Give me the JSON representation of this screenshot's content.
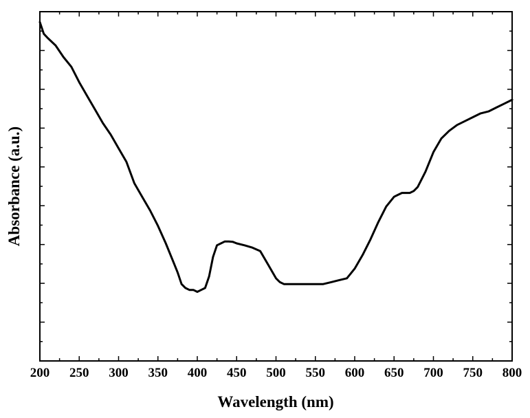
{
  "chart_data": {
    "type": "line",
    "title": "",
    "xlabel": "Wavelength (nm)",
    "ylabel": "Absorbance (a.u.)",
    "xlim": [
      200,
      800
    ],
    "ylim": [
      0,
      9
    ],
    "x_ticks": [
      "200",
      "250",
      "300",
      "350",
      "400",
      "450",
      "500",
      "550",
      "600",
      "650",
      "700",
      "750",
      "800"
    ],
    "y_ticks_labeled": false,
    "grid": false,
    "legend": "none",
    "line_color": "#000000",
    "series": [
      {
        "x": [
          200,
          205,
          210,
          220,
          230,
          240,
          250,
          260,
          270,
          280,
          290,
          300,
          310,
          320,
          330,
          340,
          350,
          360,
          370,
          375,
          380,
          385,
          390,
          395,
          400,
          405,
          410,
          415,
          420,
          425,
          430,
          435,
          440,
          445,
          450,
          460,
          470,
          480,
          490,
          500,
          505,
          510,
          520,
          530,
          540,
          550,
          560,
          570,
          580,
          590,
          600,
          610,
          620,
          630,
          640,
          650,
          655,
          660,
          665,
          670,
          675,
          680,
          690,
          700,
          710,
          720,
          730,
          740,
          750,
          760,
          770,
          780,
          790,
          800
        ],
        "y": [
          8.73,
          8.43,
          8.32,
          8.13,
          7.83,
          7.58,
          7.18,
          6.83,
          6.48,
          6.13,
          5.83,
          5.48,
          5.13,
          4.58,
          4.23,
          3.88,
          3.48,
          3.03,
          2.53,
          2.28,
          1.98,
          1.88,
          1.83,
          1.83,
          1.78,
          1.83,
          1.88,
          2.18,
          2.68,
          2.98,
          3.03,
          3.08,
          3.08,
          3.07,
          3.03,
          2.98,
          2.92,
          2.83,
          2.48,
          2.13,
          2.03,
          1.98,
          1.98,
          1.98,
          1.98,
          1.98,
          1.98,
          2.03,
          2.08,
          2.13,
          2.38,
          2.73,
          3.13,
          3.58,
          3.98,
          4.23,
          4.28,
          4.33,
          4.33,
          4.33,
          4.38,
          4.48,
          4.88,
          5.38,
          5.73,
          5.93,
          6.08,
          6.18,
          6.28,
          6.38,
          6.43,
          6.53,
          6.63,
          6.73
        ]
      }
    ]
  }
}
